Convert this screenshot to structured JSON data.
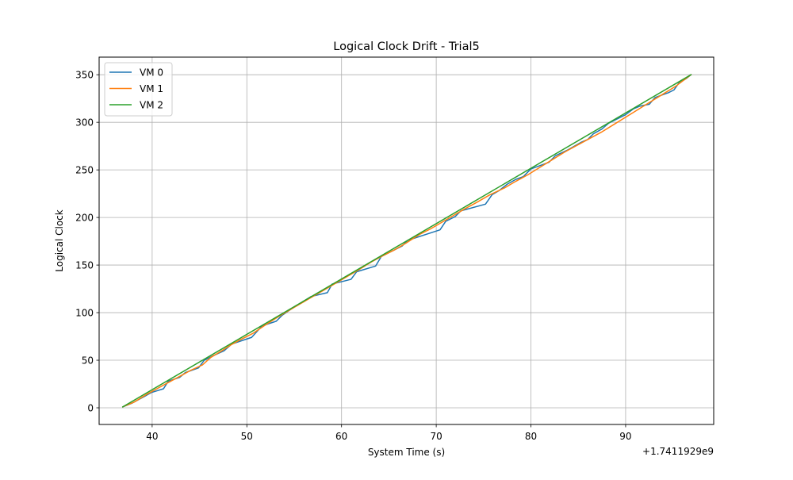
{
  "chart_data": {
    "type": "line",
    "title": "Logical Clock Drift - Trial5",
    "xlabel": "System Time (s)",
    "ylabel": "Logical Clock",
    "x_offset_label": "+1.7411929e9",
    "xlim": [
      34.4,
      99.3
    ],
    "ylim": [
      -17.5,
      368.5
    ],
    "x_ticks": [
      40,
      50,
      60,
      70,
      80,
      90
    ],
    "y_ticks": [
      0,
      50,
      100,
      150,
      200,
      250,
      300,
      350
    ],
    "grid": true,
    "legend_position": "top-left",
    "series": [
      {
        "name": "VM 0",
        "color": "#1f77b4",
        "points": [
          [
            36.9,
            1
          ],
          [
            37.9,
            5
          ],
          [
            39.2,
            12
          ],
          [
            39.9,
            16
          ],
          [
            41.2,
            20
          ],
          [
            41.7,
            28
          ],
          [
            42.9,
            32
          ],
          [
            43.5,
            37
          ],
          [
            44.9,
            42
          ],
          [
            45.5,
            50
          ],
          [
            46.5,
            55
          ],
          [
            47.6,
            60
          ],
          [
            48.4,
            67
          ],
          [
            50.5,
            74
          ],
          [
            51.6,
            86
          ],
          [
            53.1,
            91
          ],
          [
            53.7,
            97
          ],
          [
            55,
            106
          ],
          [
            56.8,
            117
          ],
          [
            58.5,
            121
          ],
          [
            59,
            130
          ],
          [
            61,
            135
          ],
          [
            61.6,
            143
          ],
          [
            63.6,
            149
          ],
          [
            64.2,
            159
          ],
          [
            65,
            163
          ],
          [
            66.4,
            170
          ],
          [
            67,
            176
          ],
          [
            70.4,
            187
          ],
          [
            71,
            196
          ],
          [
            72,
            201
          ],
          [
            72.6,
            207
          ],
          [
            75.2,
            214
          ],
          [
            75.9,
            224
          ],
          [
            76.6,
            228
          ],
          [
            77.5,
            235
          ],
          [
            78.4,
            240
          ],
          [
            79.2,
            243
          ],
          [
            80,
            251
          ],
          [
            81.9,
            258
          ],
          [
            82.6,
            265
          ],
          [
            83.9,
            271
          ],
          [
            85.3,
            279
          ],
          [
            86,
            282
          ],
          [
            86.6,
            288
          ],
          [
            87.5,
            293
          ],
          [
            88.2,
            299
          ],
          [
            90,
            308
          ],
          [
            90.8,
            314
          ],
          [
            91.5,
            317
          ],
          [
            92.5,
            319
          ],
          [
            93.1,
            326
          ],
          [
            94.5,
            331
          ],
          [
            95.1,
            334
          ],
          [
            95.6,
            341
          ],
          [
            96.4,
            346
          ],
          [
            96.9,
            350
          ]
        ]
      },
      {
        "name": "VM 1",
        "color": "#ff7f0e",
        "points": [
          [
            36.9,
            1
          ],
          [
            38.1,
            6
          ],
          [
            39.4,
            14
          ],
          [
            40.5,
            20
          ],
          [
            41.6,
            26
          ],
          [
            42.9,
            33
          ],
          [
            44,
            39
          ],
          [
            45.3,
            45
          ],
          [
            46.2,
            53
          ],
          [
            47.2,
            59
          ],
          [
            48.3,
            66
          ],
          [
            49.4,
            72
          ],
          [
            50.6,
            78
          ],
          [
            51.8,
            86
          ],
          [
            53.2,
            95
          ],
          [
            54.4,
            102
          ],
          [
            55.6,
            109
          ],
          [
            56.8,
            116
          ],
          [
            58.2,
            124
          ],
          [
            59.4,
            131
          ],
          [
            60.6,
            138
          ],
          [
            61.8,
            145
          ],
          [
            63.1,
            153
          ],
          [
            64.4,
            160
          ],
          [
            65.6,
            166
          ],
          [
            66.8,
            173
          ],
          [
            68.2,
            182
          ],
          [
            69.4,
            188
          ],
          [
            70.6,
            195
          ],
          [
            71.8,
            202
          ],
          [
            73,
            209
          ],
          [
            74.3,
            216
          ],
          [
            75.7,
            224
          ],
          [
            77.2,
            231
          ],
          [
            78.4,
            238
          ],
          [
            79.7,
            245
          ],
          [
            81,
            253
          ],
          [
            82.3,
            261
          ],
          [
            83.6,
            269
          ],
          [
            84.9,
            276
          ],
          [
            86.2,
            283
          ],
          [
            87.5,
            290
          ],
          [
            88.8,
            298
          ],
          [
            90.1,
            306
          ],
          [
            91.4,
            314
          ],
          [
            92.7,
            322
          ],
          [
            94,
            330
          ],
          [
            95.3,
            338
          ],
          [
            96.9,
            350
          ]
        ]
      },
      {
        "name": "VM 2",
        "color": "#2ca02c",
        "points": [
          [
            36.9,
            1
          ],
          [
            96.9,
            350
          ]
        ]
      }
    ]
  }
}
